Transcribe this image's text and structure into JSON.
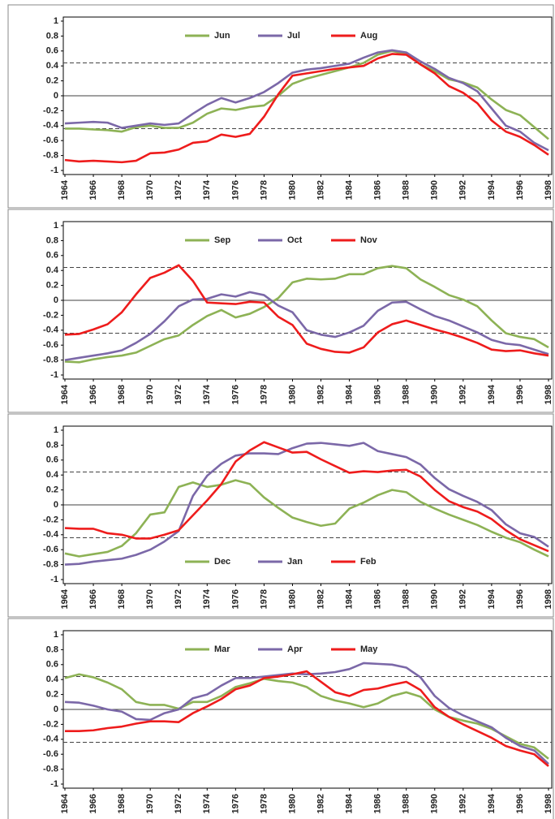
{
  "chart_data": [
    {
      "type": "line",
      "legend": "upper center",
      "ylim": [
        -1,
        1
      ],
      "yticks": [
        -1,
        -0.8,
        -0.6,
        -0.4,
        -0.2,
        0,
        0.2,
        0.4,
        0.6,
        0.8,
        1
      ],
      "xlim": [
        1964,
        1998
      ],
      "xticks": [
        1964,
        1966,
        1968,
        1970,
        1972,
        1974,
        1976,
        1978,
        1980,
        1982,
        1984,
        1986,
        1988,
        1990,
        1992,
        1994,
        1996,
        1998
      ],
      "hlines": [
        0.44,
        -0.44
      ],
      "x": [
        1964,
        1965,
        1966,
        1967,
        1968,
        1969,
        1970,
        1971,
        1972,
        1973,
        1974,
        1975,
        1976,
        1977,
        1978,
        1979,
        1980,
        1981,
        1982,
        1983,
        1984,
        1985,
        1986,
        1987,
        1988,
        1989,
        1990,
        1991,
        1992,
        1993,
        1994,
        1995,
        1996,
        1997,
        1998
      ],
      "series": [
        {
          "name": "Jun",
          "color": "#8db255",
          "values": [
            -0.44,
            -0.44,
            -0.45,
            -0.46,
            -0.48,
            -0.42,
            -0.4,
            -0.43,
            -0.43,
            -0.36,
            -0.24,
            -0.17,
            -0.19,
            -0.15,
            -0.13,
            0.0,
            0.16,
            0.23,
            0.28,
            0.33,
            0.38,
            0.44,
            0.55,
            0.6,
            0.56,
            0.42,
            0.33,
            0.22,
            0.18,
            0.11,
            -0.05,
            -0.19,
            -0.26,
            -0.42,
            -0.58
          ]
        },
        {
          "name": "Jul",
          "color": "#7b68a8",
          "values": [
            -0.37,
            -0.36,
            -0.35,
            -0.36,
            -0.43,
            -0.4,
            -0.37,
            -0.39,
            -0.37,
            -0.24,
            -0.12,
            -0.03,
            -0.09,
            -0.03,
            0.05,
            0.17,
            0.31,
            0.35,
            0.37,
            0.4,
            0.43,
            0.51,
            0.58,
            0.61,
            0.58,
            0.46,
            0.36,
            0.24,
            0.17,
            0.06,
            -0.17,
            -0.4,
            -0.48,
            -0.63,
            -0.73
          ]
        },
        {
          "name": "Aug",
          "color": "#ee1c1c",
          "values": [
            -0.86,
            -0.88,
            -0.87,
            -0.88,
            -0.89,
            -0.87,
            -0.77,
            -0.76,
            -0.72,
            -0.63,
            -0.61,
            -0.52,
            -0.55,
            -0.51,
            -0.28,
            0.02,
            0.27,
            0.3,
            0.33,
            0.36,
            0.38,
            0.4,
            0.5,
            0.56,
            0.55,
            0.42,
            0.3,
            0.13,
            0.04,
            -0.1,
            -0.33,
            -0.48,
            -0.55,
            -0.66,
            -0.79
          ]
        }
      ]
    },
    {
      "type": "line",
      "legend": "upper center",
      "ylim": [
        -1,
        1
      ],
      "yticks": [
        -1,
        -0.8,
        -0.6,
        -0.4,
        -0.2,
        0,
        0.2,
        0.4,
        0.6,
        0.8,
        1
      ],
      "xlim": [
        1964,
        1998
      ],
      "xticks": [
        1964,
        1966,
        1968,
        1970,
        1972,
        1974,
        1976,
        1978,
        1980,
        1982,
        1984,
        1986,
        1988,
        1990,
        1992,
        1994,
        1996,
        1998
      ],
      "hlines": [
        0.44,
        -0.44
      ],
      "x": [
        1964,
        1965,
        1966,
        1967,
        1968,
        1969,
        1970,
        1971,
        1972,
        1973,
        1974,
        1975,
        1976,
        1977,
        1978,
        1979,
        1980,
        1981,
        1982,
        1983,
        1984,
        1985,
        1986,
        1987,
        1988,
        1989,
        1990,
        1991,
        1992,
        1993,
        1994,
        1995,
        1996,
        1997,
        1998
      ],
      "series": [
        {
          "name": "Sep",
          "color": "#8db255",
          "values": [
            -0.82,
            -0.83,
            -0.79,
            -0.76,
            -0.74,
            -0.7,
            -0.61,
            -0.52,
            -0.47,
            -0.33,
            -0.21,
            -0.13,
            -0.23,
            -0.18,
            -0.09,
            0.03,
            0.24,
            0.29,
            0.28,
            0.29,
            0.35,
            0.35,
            0.43,
            0.46,
            0.43,
            0.28,
            0.18,
            0.07,
            0.01,
            -0.08,
            -0.27,
            -0.44,
            -0.49,
            -0.52,
            -0.63
          ]
        },
        {
          "name": "Oct",
          "color": "#7b68a8",
          "values": [
            -0.8,
            -0.77,
            -0.74,
            -0.71,
            -0.67,
            -0.57,
            -0.45,
            -0.28,
            -0.08,
            0.01,
            0.02,
            0.08,
            0.05,
            0.11,
            0.07,
            -0.07,
            -0.16,
            -0.4,
            -0.46,
            -0.49,
            -0.43,
            -0.34,
            -0.14,
            -0.03,
            -0.02,
            -0.12,
            -0.21,
            -0.27,
            -0.35,
            -0.43,
            -0.53,
            -0.58,
            -0.6,
            -0.66,
            -0.72
          ]
        },
        {
          "name": "Nov",
          "color": "#ee1c1c",
          "values": [
            -0.46,
            -0.45,
            -0.39,
            -0.32,
            -0.16,
            0.08,
            0.3,
            0.37,
            0.47,
            0.26,
            -0.03,
            -0.04,
            -0.05,
            -0.02,
            -0.03,
            -0.22,
            -0.33,
            -0.58,
            -0.65,
            -0.69,
            -0.7,
            -0.63,
            -0.43,
            -0.32,
            -0.27,
            -0.33,
            -0.39,
            -0.44,
            -0.5,
            -0.57,
            -0.66,
            -0.68,
            -0.67,
            -0.71,
            -0.74
          ]
        }
      ]
    },
    {
      "type": "line",
      "legend": "lower center",
      "ylim": [
        -1,
        1
      ],
      "yticks": [
        -1,
        -0.8,
        -0.6,
        -0.4,
        -0.2,
        0,
        0.2,
        0.4,
        0.6,
        0.8,
        1
      ],
      "xlim": [
        1964,
        1998
      ],
      "xticks": [
        1964,
        1966,
        1968,
        1970,
        1972,
        1974,
        1976,
        1978,
        1980,
        1982,
        1984,
        1986,
        1988,
        1990,
        1992,
        1994,
        1996,
        1998
      ],
      "hlines": [
        0.44,
        -0.44
      ],
      "x": [
        1964,
        1965,
        1966,
        1967,
        1968,
        1969,
        1970,
        1971,
        1972,
        1973,
        1974,
        1975,
        1976,
        1977,
        1978,
        1979,
        1980,
        1981,
        1982,
        1983,
        1984,
        1985,
        1986,
        1987,
        1988,
        1989,
        1990,
        1991,
        1992,
        1993,
        1994,
        1995,
        1996,
        1997,
        1998
      ],
      "series": [
        {
          "name": "Dec",
          "color": "#8db255",
          "values": [
            -0.65,
            -0.69,
            -0.66,
            -0.63,
            -0.55,
            -0.38,
            -0.13,
            -0.1,
            0.24,
            0.3,
            0.24,
            0.27,
            0.33,
            0.28,
            0.1,
            -0.04,
            -0.17,
            -0.23,
            -0.28,
            -0.25,
            -0.05,
            0.03,
            0.13,
            0.2,
            0.17,
            0.04,
            -0.05,
            -0.13,
            -0.2,
            -0.27,
            -0.36,
            -0.44,
            -0.5,
            -0.6,
            -0.69
          ]
        },
        {
          "name": "Jan",
          "color": "#7b68a8",
          "values": [
            -0.8,
            -0.79,
            -0.76,
            -0.74,
            -0.72,
            -0.67,
            -0.6,
            -0.49,
            -0.35,
            0.12,
            0.39,
            0.55,
            0.66,
            0.69,
            0.69,
            0.68,
            0.76,
            0.82,
            0.83,
            0.81,
            0.79,
            0.83,
            0.72,
            0.68,
            0.64,
            0.54,
            0.36,
            0.21,
            0.12,
            0.04,
            -0.07,
            -0.26,
            -0.38,
            -0.43,
            -0.56
          ]
        },
        {
          "name": "Feb",
          "color": "#ee1c1c",
          "values": [
            -0.31,
            -0.32,
            -0.32,
            -0.38,
            -0.4,
            -0.45,
            -0.45,
            -0.4,
            -0.34,
            -0.14,
            0.06,
            0.28,
            0.58,
            0.73,
            0.84,
            0.77,
            0.7,
            0.71,
            0.61,
            0.52,
            0.43,
            0.45,
            0.44,
            0.46,
            0.47,
            0.38,
            0.2,
            0.05,
            -0.03,
            -0.09,
            -0.19,
            -0.34,
            -0.46,
            -0.54,
            -0.62
          ]
        }
      ]
    },
    {
      "type": "line",
      "legend": "upper center",
      "ylim": [
        -1,
        1
      ],
      "yticks": [
        -1,
        -0.8,
        -0.6,
        -0.4,
        -0.2,
        0,
        0.2,
        0.4,
        0.6,
        0.8,
        1
      ],
      "xlim": [
        1964,
        1998
      ],
      "xticks": [
        1964,
        1966,
        1968,
        1970,
        1972,
        1974,
        1976,
        1978,
        1980,
        1982,
        1984,
        1986,
        1988,
        1990,
        1992,
        1994,
        1996,
        1998
      ],
      "hlines": [
        0.44,
        -0.44
      ],
      "x": [
        1964,
        1965,
        1966,
        1967,
        1968,
        1969,
        1970,
        1971,
        1972,
        1973,
        1974,
        1975,
        1976,
        1977,
        1978,
        1979,
        1980,
        1981,
        1982,
        1983,
        1984,
        1985,
        1986,
        1987,
        1988,
        1989,
        1990,
        1991,
        1992,
        1993,
        1994,
        1995,
        1996,
        1997,
        1998
      ],
      "series": [
        {
          "name": "Mar",
          "color": "#8db255",
          "values": [
            0.42,
            0.47,
            0.43,
            0.36,
            0.27,
            0.1,
            0.06,
            0.06,
            0.01,
            0.1,
            0.1,
            0.18,
            0.3,
            0.35,
            0.41,
            0.38,
            0.36,
            0.3,
            0.18,
            0.12,
            0.08,
            0.03,
            0.08,
            0.18,
            0.23,
            0.17,
            0.0,
            -0.1,
            -0.15,
            -0.19,
            -0.26,
            -0.36,
            -0.46,
            -0.51,
            -0.66
          ]
        },
        {
          "name": "Apr",
          "color": "#7b68a8",
          "values": [
            0.1,
            0.09,
            0.05,
            0.0,
            -0.03,
            -0.13,
            -0.14,
            -0.05,
            0.0,
            0.15,
            0.2,
            0.32,
            0.42,
            0.42,
            0.44,
            0.46,
            0.48,
            0.47,
            0.48,
            0.5,
            0.54,
            0.62,
            0.61,
            0.6,
            0.56,
            0.43,
            0.18,
            0.02,
            -0.08,
            -0.16,
            -0.24,
            -0.38,
            -0.49,
            -0.55,
            -0.73
          ]
        },
        {
          "name": "May",
          "color": "#ee1c1c",
          "values": [
            -0.29,
            -0.29,
            -0.28,
            -0.25,
            -0.23,
            -0.19,
            -0.16,
            -0.16,
            -0.17,
            -0.05,
            0.04,
            0.14,
            0.27,
            0.32,
            0.42,
            0.44,
            0.47,
            0.51,
            0.37,
            0.23,
            0.18,
            0.26,
            0.28,
            0.33,
            0.37,
            0.26,
            0.03,
            -0.1,
            -0.2,
            -0.29,
            -0.38,
            -0.49,
            -0.55,
            -0.6,
            -0.76
          ]
        }
      ]
    }
  ]
}
